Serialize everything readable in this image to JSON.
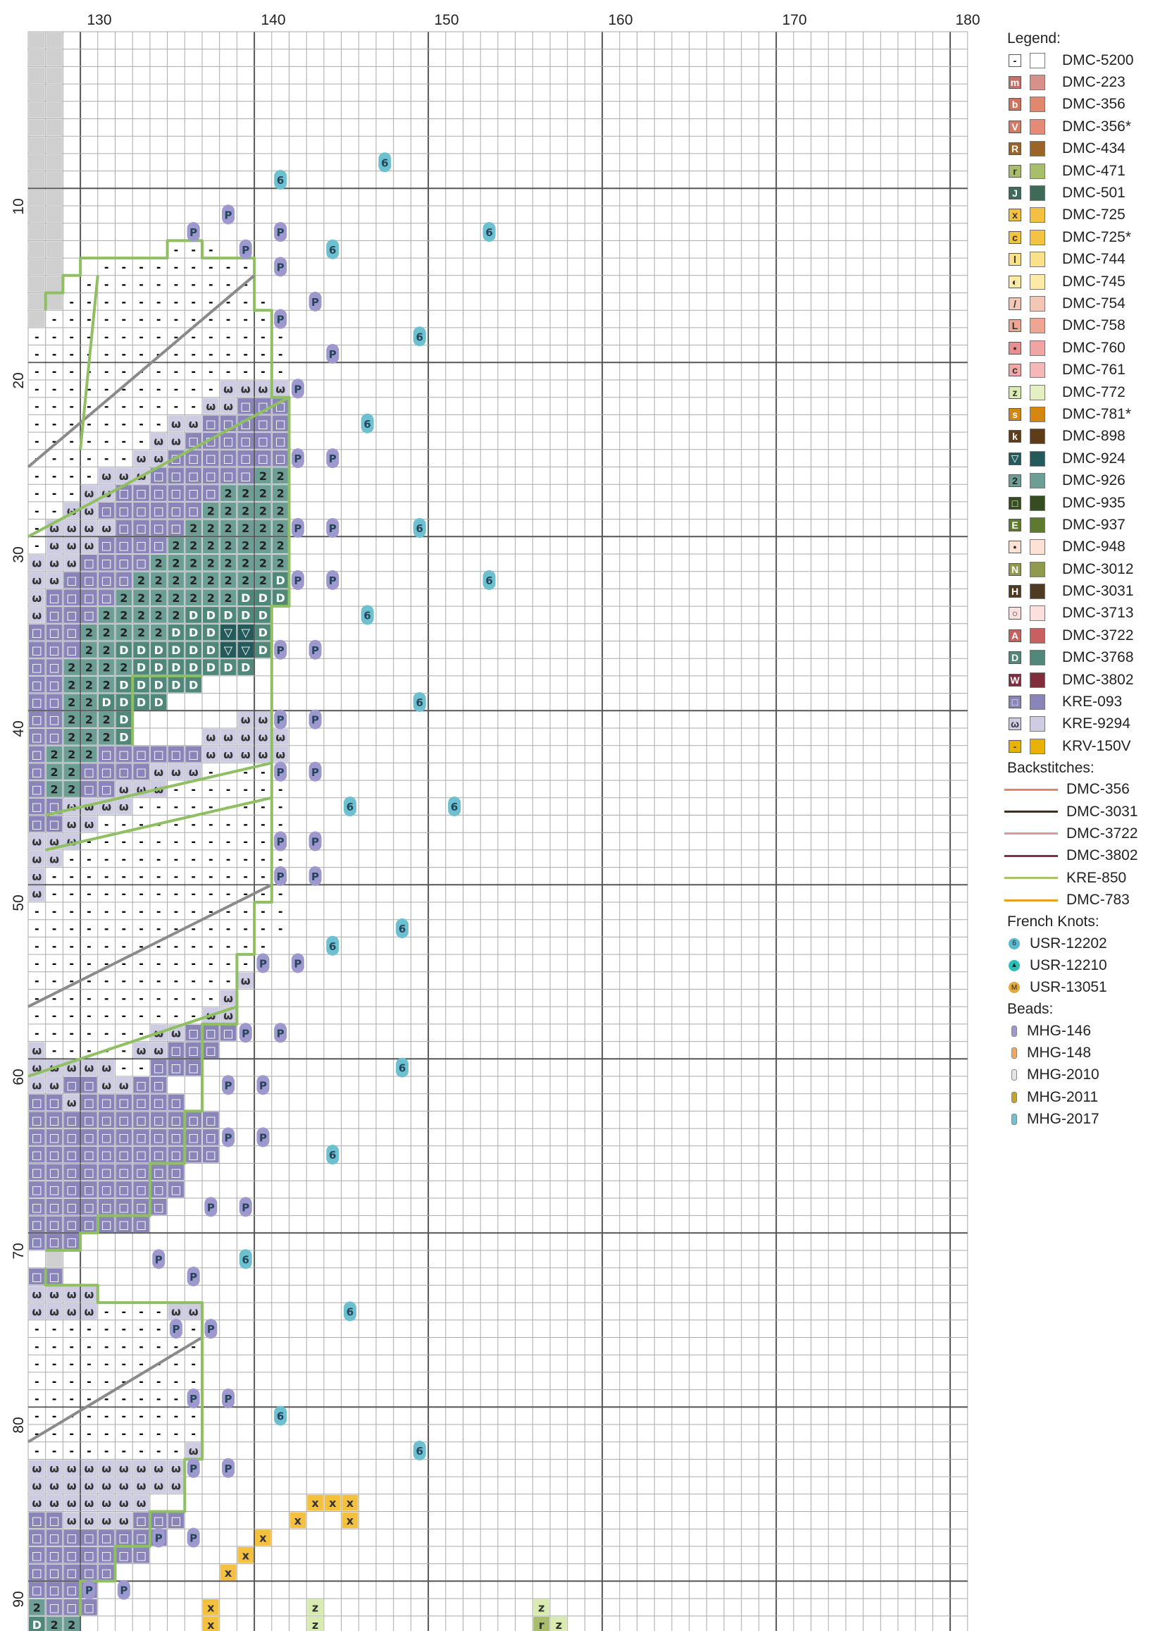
{
  "chart": {
    "x_ticks": [
      "130",
      "140",
      "150",
      "160",
      "170",
      "180"
    ],
    "y_ticks": [
      "10",
      "20",
      "30",
      "40",
      "50",
      "60",
      "70",
      "80",
      "90"
    ]
  },
  "legend": {
    "title": "Legend:",
    "threads": [
      {
        "symbol": "-",
        "code": "DMC-5200",
        "color": "#ffffff",
        "symbol_bg": "#ffffff",
        "symbol_fg": "#000000"
      },
      {
        "symbol": "m",
        "code": "DMC-223",
        "color": "#d9908a",
        "symbol_bg": "#c4716c",
        "symbol_fg": "#ffffff"
      },
      {
        "symbol": "b",
        "code": "DMC-356",
        "color": "#e0876f",
        "symbol_bg": "#d0735c",
        "symbol_fg": "#ffffff"
      },
      {
        "symbol": "V",
        "code": "DMC-356*",
        "color": "#e38b76",
        "symbol_bg": "#d27b67",
        "symbol_fg": "#ffffff"
      },
      {
        "symbol": "R",
        "code": "DMC-434",
        "color": "#9c6428",
        "symbol_bg": "#9c6428",
        "symbol_fg": "#ffffff"
      },
      {
        "symbol": "r",
        "code": "DMC-471",
        "color": "#a9be6a",
        "symbol_bg": "#a9be6a",
        "symbol_fg": "#333333"
      },
      {
        "symbol": "J",
        "code": "DMC-501",
        "color": "#3d6b58",
        "symbol_bg": "#3d6b58",
        "symbol_fg": "#ffffff"
      },
      {
        "symbol": "x",
        "code": "DMC-725",
        "color": "#f4c040",
        "symbol_bg": "#f4c040",
        "symbol_fg": "#333333"
      },
      {
        "symbol": "c",
        "code": "DMC-725*",
        "color": "#f3c443",
        "symbol_bg": "#f3c443",
        "symbol_fg": "#333333"
      },
      {
        "symbol": "l",
        "code": "DMC-744",
        "color": "#fbe08a",
        "symbol_bg": "#fbe08a",
        "symbol_fg": "#333333"
      },
      {
        "symbol": "◐",
        "code": "DMC-745",
        "color": "#fdeaa6",
        "symbol_bg": "#fdeaa6",
        "symbol_fg": "#333333"
      },
      {
        "symbol": "/",
        "code": "DMC-754",
        "color": "#f4c6b5",
        "symbol_bg": "#f4c6b5",
        "symbol_fg": "#333333"
      },
      {
        "symbol": "L",
        "code": "DMC-758",
        "color": "#eea592",
        "symbol_bg": "#eea592",
        "symbol_fg": "#333333"
      },
      {
        "symbol": "•",
        "code": "DMC-760",
        "color": "#f1a4a4",
        "symbol_bg": "#e88f91",
        "symbol_fg": "#333333"
      },
      {
        "symbol": "c",
        "code": "DMC-761",
        "color": "#f6b8b6",
        "symbol_bg": "#f1a8a6",
        "symbol_fg": "#333333"
      },
      {
        "symbol": "z",
        "code": "DMC-772",
        "color": "#e4f0c2",
        "symbol_bg": "#d9ebb0",
        "symbol_fg": "#333333"
      },
      {
        "symbol": "s",
        "code": "DMC-781*",
        "color": "#d4860f",
        "symbol_bg": "#d4860f",
        "symbol_fg": "#ffffff"
      },
      {
        "symbol": "k",
        "code": "DMC-898",
        "color": "#5e3c17",
        "symbol_bg": "#5e3c17",
        "symbol_fg": "#ffffff"
      },
      {
        "symbol": "▽",
        "code": "DMC-924",
        "color": "#245a5a",
        "symbol_bg": "#245a5a",
        "symbol_fg": "#ffffff"
      },
      {
        "symbol": "2",
        "code": "DMC-926",
        "color": "#6d9e96",
        "symbol_bg": "#6d9e96",
        "symbol_fg": "#222222"
      },
      {
        "symbol": "□",
        "code": "DMC-935",
        "color": "#364e1f",
        "symbol_bg": "#364e1f",
        "symbol_fg": "#ffffff"
      },
      {
        "symbol": "E",
        "code": "DMC-937",
        "color": "#5d7a2f",
        "symbol_bg": "#5d7a2f",
        "symbol_fg": "#ffffff"
      },
      {
        "symbol": "•",
        "code": "DMC-948",
        "color": "#fde1d2",
        "symbol_bg": "#fde1d2",
        "symbol_fg": "#333333"
      },
      {
        "symbol": "N",
        "code": "DMC-3012",
        "color": "#909a4d",
        "symbol_bg": "#909a4d",
        "symbol_fg": "#ffffff"
      },
      {
        "symbol": "H",
        "code": "DMC-3031",
        "color": "#4f3b24",
        "symbol_bg": "#4f3b24",
        "symbol_fg": "#ffffff"
      },
      {
        "symbol": "○",
        "code": "DMC-3713",
        "color": "#fde0de",
        "symbol_bg": "#fde0de",
        "symbol_fg": "#333333"
      },
      {
        "symbol": "A",
        "code": "DMC-3722",
        "color": "#c96060",
        "symbol_bg": "#c96060",
        "symbol_fg": "#ffffff"
      },
      {
        "symbol": "D",
        "code": "DMC-3768",
        "color": "#4f8878",
        "symbol_bg": "#4f8878",
        "symbol_fg": "#ffffff"
      },
      {
        "symbol": "W",
        "code": "DMC-3802",
        "color": "#822d3c",
        "symbol_bg": "#822d3c",
        "symbol_fg": "#ffffff"
      },
      {
        "symbol": "□",
        "code": "KRE-093",
        "color": "#8a85b9",
        "symbol_bg": "#8a85b9",
        "symbol_fg": "#ffffff"
      },
      {
        "symbol": "ω",
        "code": "KRE-9294",
        "color": "#cecce2",
        "symbol_bg": "#cecce2",
        "symbol_fg": "#333333"
      },
      {
        "symbol": "-",
        "code": "KRV-150V",
        "color": "#e7b300",
        "symbol_bg": "#e7b300",
        "symbol_fg": "#333333"
      }
    ],
    "backstitch_title": "Backstitches:",
    "backstitches": [
      {
        "code": "DMC-356",
        "color": "#e6826e"
      },
      {
        "code": "DMC-3031",
        "color": "#3c2f1f"
      },
      {
        "code": "DMC-3722",
        "color": "#d89a9a"
      },
      {
        "code": "DMC-3802",
        "color": "#8a2c48"
      },
      {
        "code": "KRE-850",
        "color": "#a6c36c"
      },
      {
        "code": "DMC-783",
        "color": "#e5a11f"
      }
    ],
    "knot_title": "French Knots:",
    "knots": [
      {
        "symbol": "6",
        "code": "USR-12202",
        "color": "#58b9cf"
      },
      {
        "symbol": "▲",
        "code": "USR-12210",
        "color": "#2bbfb9"
      },
      {
        "symbol": "M",
        "code": "USR-13051",
        "color": "#e3a93a"
      }
    ],
    "bead_title": "Beads:",
    "beads": [
      {
        "code": "MHG-146",
        "color": "#9d99cf"
      },
      {
        "code": "MHG-148",
        "color": "#f2a55d"
      },
      {
        "code": "MHG-2010",
        "color": "#e5e3e0"
      },
      {
        "code": "MHG-2011",
        "color": "#c5a32a"
      },
      {
        "code": "MHG-2017",
        "color": "#6cc0cf"
      }
    ]
  }
}
